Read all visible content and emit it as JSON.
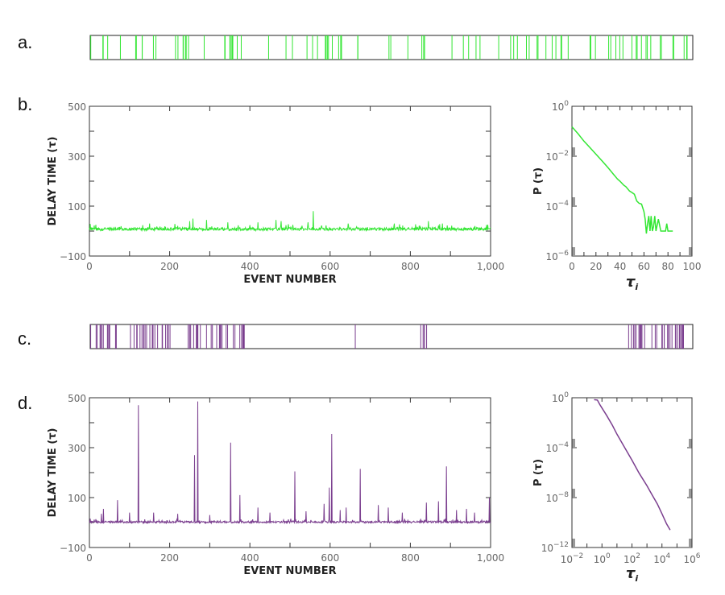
{
  "panels": {
    "a": {
      "label": "a.",
      "color": "#33e633",
      "event_clusters": [
        [
          0,
          1000
        ]
      ],
      "event_count": 150,
      "seed": 7
    },
    "b": {
      "label": "b."
    },
    "c": {
      "label": "c.",
      "color": "#7b3f8f",
      "event_clusters": [
        [
          0,
          45
        ],
        [
          65,
          140
        ],
        [
          160,
          260
        ],
        [
          437,
          440
        ],
        [
          545,
          560
        ],
        [
          887,
          990
        ]
      ],
      "event_count": 110,
      "seed": 3
    },
    "d": {
      "label": "d."
    }
  },
  "chart_data": [
    {
      "id": "b-series",
      "type": "line",
      "color": "#33e633",
      "xlabel": "EVENT NUMBER",
      "ylabel": "DELAY TIME (τ)",
      "xlim": [
        0,
        1000
      ],
      "ylim": [
        -100,
        500
      ],
      "xticks": [
        "0",
        "200",
        "400",
        "600",
        "800",
        "1,000"
      ],
      "yticks": [
        "500",
        "300",
        "100",
        "−100"
      ],
      "baseline_mean": 8,
      "baseline_noise": 12,
      "peaks": [
        [
          150,
          30
        ],
        [
          250,
          40
        ],
        [
          258,
          50
        ],
        [
          292,
          45
        ],
        [
          345,
          35
        ],
        [
          420,
          35
        ],
        [
          465,
          45
        ],
        [
          478,
          40
        ],
        [
          558,
          80
        ],
        [
          545,
          35
        ],
        [
          645,
          30
        ],
        [
          760,
          30
        ],
        [
          845,
          40
        ],
        [
          880,
          30
        ],
        [
          990,
          25
        ]
      ]
    },
    {
      "id": "b-dist",
      "type": "line",
      "color": "#33e633",
      "xlabel": "τ",
      "xlabel_sub": "i",
      "ylabel": "P (τ)",
      "xscale": "linear",
      "yscale": "log",
      "xlim": [
        0,
        100
      ],
      "ylim": [
        1e-06,
        1
      ],
      "xticks": [
        "0",
        "20",
        "40",
        "60",
        "80",
        "100"
      ],
      "yticks": [
        {
          "base": "10",
          "exp": "0"
        },
        {
          "base": "10",
          "exp": "-2"
        },
        {
          "base": "10",
          "exp": "-4"
        },
        {
          "base": "10",
          "exp": "-6"
        }
      ],
      "points": [
        [
          0,
          0.15
        ],
        [
          5,
          0.08
        ],
        [
          10,
          0.04
        ],
        [
          15,
          0.022
        ],
        [
          20,
          0.012
        ],
        [
          25,
          0.0065
        ],
        [
          30,
          0.0035
        ],
        [
          35,
          0.0018
        ],
        [
          38,
          0.0012
        ],
        [
          40,
          0.001
        ],
        [
          43,
          0.0007
        ],
        [
          45,
          0.0006
        ],
        [
          48,
          0.0004
        ],
        [
          50,
          0.00035
        ],
        [
          52,
          0.0003
        ],
        [
          54,
          0.00016
        ],
        [
          56,
          0.00013
        ],
        [
          58,
          0.00012
        ],
        [
          60,
          6e-05
        ],
        [
          61,
          3e-05
        ],
        [
          62,
          8e-06
        ],
        [
          63,
          2e-05
        ],
        [
          64,
          4e-05
        ],
        [
          65,
          1e-05
        ],
        [
          66,
          4e-05
        ],
        [
          67,
          1e-05
        ],
        [
          68,
          1.5e-05
        ],
        [
          69,
          4e-05
        ],
        [
          70,
          1e-05
        ],
        [
          72,
          3e-05
        ],
        [
          74,
          1e-05
        ],
        [
          78,
          1e-05
        ],
        [
          79,
          2e-05
        ],
        [
          80,
          1e-05
        ],
        [
          84,
          1e-05
        ]
      ]
    },
    {
      "id": "d-series",
      "type": "line",
      "color": "#7b3f8f",
      "xlabel": "EVENT NUMBER",
      "ylabel": "DELAY TIME (τ)",
      "xlim": [
        0,
        1000
      ],
      "ylim": [
        -100,
        500
      ],
      "xticks": [
        "0",
        "200",
        "400",
        "600",
        "800",
        "1,000"
      ],
      "yticks": [
        "500",
        "300",
        "100",
        "−100"
      ],
      "baseline_mean": 2,
      "baseline_noise": 8,
      "peaks": [
        [
          30,
          35
        ],
        [
          35,
          55
        ],
        [
          70,
          90
        ],
        [
          100,
          40
        ],
        [
          122,
          470
        ],
        [
          160,
          40
        ],
        [
          220,
          35
        ],
        [
          262,
          270
        ],
        [
          270,
          485
        ],
        [
          300,
          30
        ],
        [
          352,
          320
        ],
        [
          375,
          110
        ],
        [
          420,
          60
        ],
        [
          450,
          40
        ],
        [
          512,
          205
        ],
        [
          540,
          45
        ],
        [
          585,
          75
        ],
        [
          598,
          140
        ],
        [
          604,
          355
        ],
        [
          625,
          50
        ],
        [
          640,
          60
        ],
        [
          675,
          215
        ],
        [
          720,
          70
        ],
        [
          745,
          60
        ],
        [
          780,
          40
        ],
        [
          840,
          80
        ],
        [
          870,
          85
        ],
        [
          890,
          225
        ],
        [
          915,
          50
        ],
        [
          940,
          55
        ],
        [
          960,
          40
        ],
        [
          997,
          100
        ]
      ]
    },
    {
      "id": "d-dist",
      "type": "line",
      "color": "#7b3f8f",
      "xlabel": "τ",
      "xlabel_sub": "i",
      "ylabel": "P (τ)",
      "xscale": "log",
      "yscale": "log",
      "xlim": [
        0.01,
        1000000
      ],
      "ylim": [
        1e-12,
        1
      ],
      "xticks": [
        {
          "base": "10",
          "exp": "-2"
        },
        {
          "base": "10",
          "exp": "0"
        },
        {
          "base": "10",
          "exp": "2"
        },
        {
          "base": "10",
          "exp": "4"
        },
        {
          "base": "10",
          "exp": "6"
        }
      ],
      "yticks": [
        {
          "base": "10",
          "exp": "0"
        },
        {
          "base": "10",
          "exp": "-4"
        },
        {
          "base": "10",
          "exp": "-8"
        },
        {
          "base": "10",
          "exp": "-12"
        }
      ],
      "points": [
        [
          0.3,
          0.7
        ],
        [
          0.5,
          0.65
        ],
        [
          0.7,
          0.3
        ],
        [
          1,
          0.15
        ],
        [
          2,
          0.04
        ],
        [
          5,
          0.006
        ],
        [
          10,
          0.0012
        ],
        [
          30,
          0.00012
        ],
        [
          100,
          1e-05
        ],
        [
          300,
          9e-07
        ],
        [
          1000,
          9e-08
        ],
        [
          2000,
          2e-08
        ],
        [
          5000,
          3e-09
        ],
        [
          10000,
          5e-10
        ],
        [
          20000,
          8e-11
        ],
        [
          35000,
          2.5e-11
        ]
      ]
    }
  ]
}
